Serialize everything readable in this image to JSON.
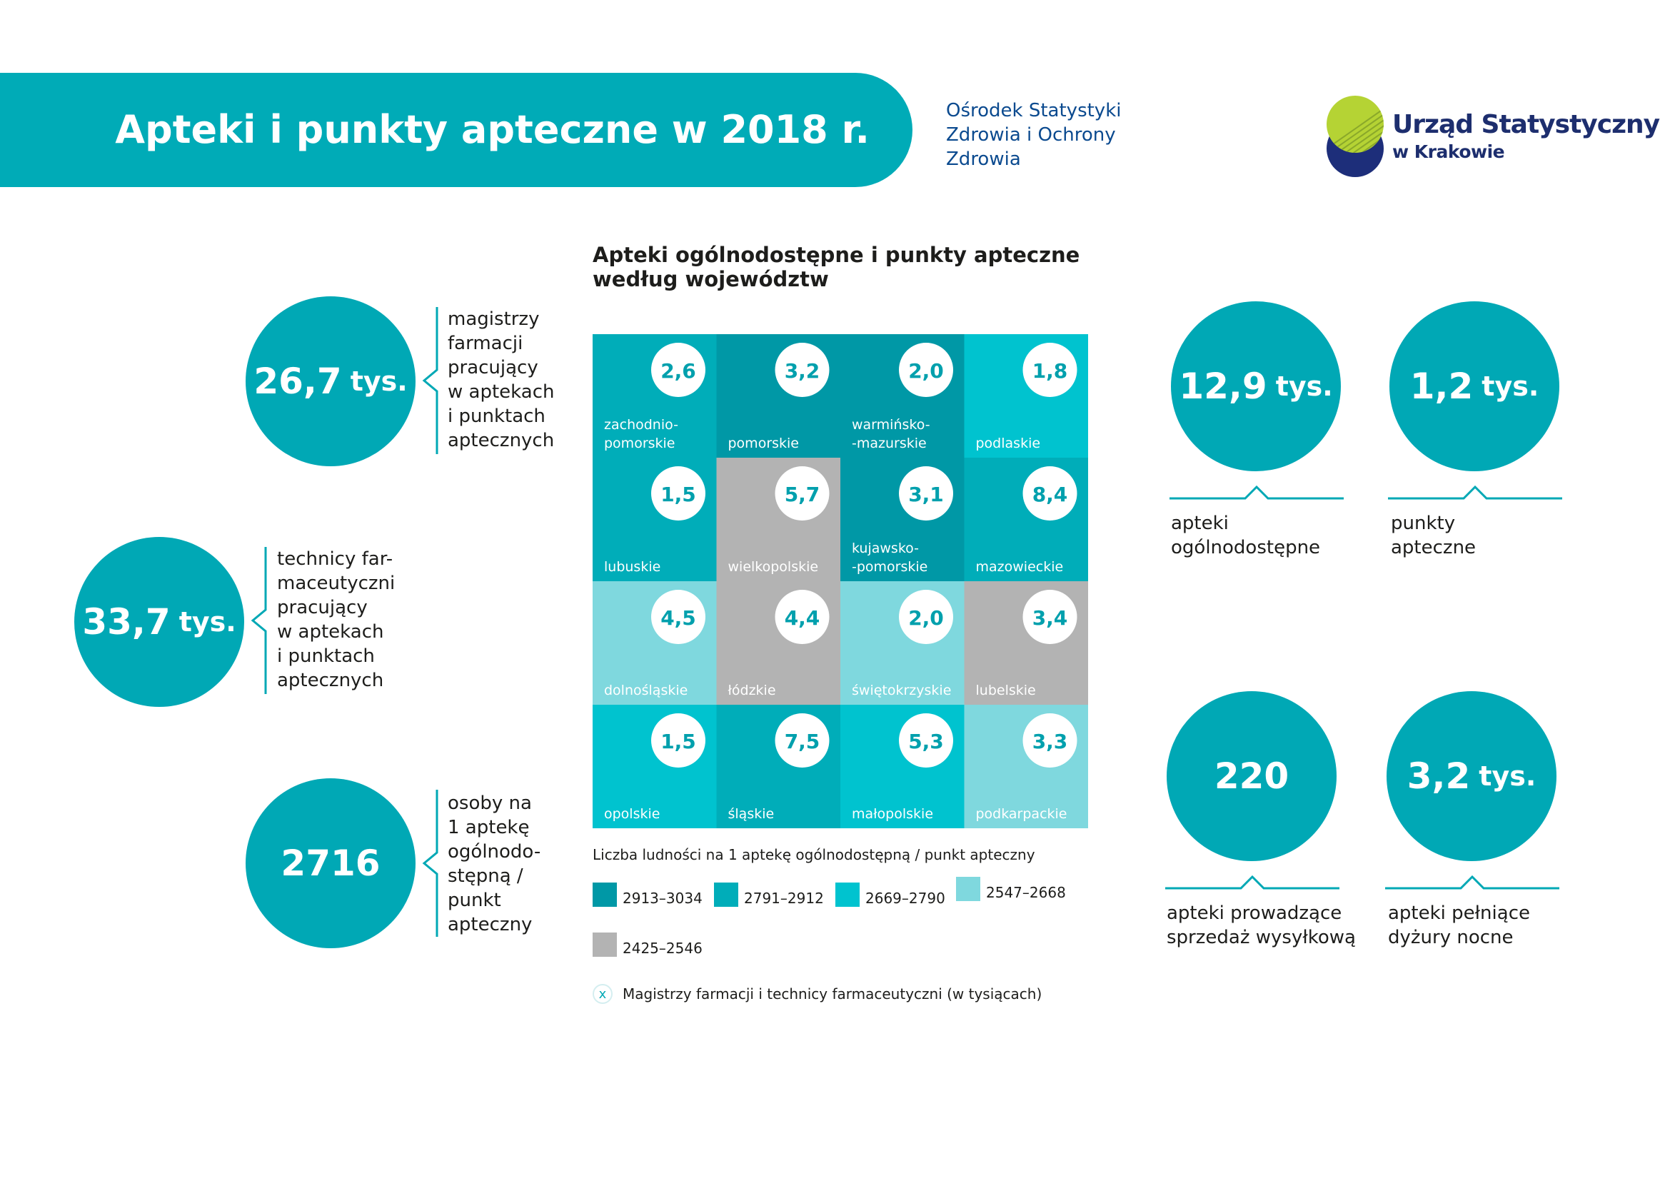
{
  "header": {
    "title": "Apteki i punkty apteczne w 2018 r.",
    "unit_lines": [
      "Ośrodek Statystyki",
      "Zdrowia i Ochrony",
      "Zdrowia"
    ],
    "logo_name": "Urząd Statystyczny",
    "logo_city": "w Krakowie",
    "accent": "#00abb7"
  },
  "left_stats": [
    {
      "value": "26,7",
      "unit": "tys.",
      "lines": [
        "magistrzy",
        "farmacji",
        "pracujący",
        "w aptekach",
        "i punktach",
        "aptecznych"
      ]
    },
    {
      "value": "33,7",
      "unit": "tys.",
      "lines": [
        "technicy far-",
        "maceutyczni",
        "pracujący",
        "w aptekach",
        "i punktach",
        "aptecznych"
      ]
    },
    {
      "value": "2716",
      "unit": "",
      "lines": [
        "osoby na",
        "1 aptekę",
        "ogólnodo-",
        "stępną /",
        "punkt",
        "apteczny"
      ]
    }
  ],
  "right_stats": [
    {
      "value": "12,9",
      "unit": "tys.",
      "lines": [
        "apteki",
        "ogólnodostępne"
      ]
    },
    {
      "value": "1,2",
      "unit": "tys.",
      "lines": [
        "punkty",
        "apteczne"
      ]
    },
    {
      "value": "220",
      "unit": "",
      "lines": [
        "apteki prowadzące",
        "sprzedaż wysyłkową"
      ]
    },
    {
      "value": "3,2",
      "unit": "tys.",
      "lines": [
        "apteki pełniące",
        "dyżury nocne"
      ]
    }
  ],
  "chart_data": {
    "type": "table",
    "title_lines": [
      "Apteki ogólnodostępne i punkty apteczne",
      "według województw"
    ],
    "classes": [
      {
        "label": "2913–3034",
        "color": "#0098a6"
      },
      {
        "label": "2791–2912",
        "color": "#00adb9"
      },
      {
        "label": "2669–2790",
        "color": "#00c3cf"
      },
      {
        "label": "2547–2668",
        "color": "#7fd8de"
      },
      {
        "label": "2425–2546",
        "color": "#b3b3b3"
      }
    ],
    "legend_title": "Liczba ludności na 1 aptekę ogólnodostępną / punkt apteczny",
    "legend_marker": "x",
    "legend_marker_text": "Magistrzy farmacji i technicy farmaceutyczni (w tysiącach)",
    "cells": [
      {
        "row": 0,
        "col": 0,
        "region_lines": [
          "zachodnio-",
          "pomorskie"
        ],
        "value": "2,6",
        "class": 1
      },
      {
        "row": 0,
        "col": 1,
        "region_lines": [
          "pomorskie"
        ],
        "value": "3,2",
        "class": 0
      },
      {
        "row": 0,
        "col": 2,
        "region_lines": [
          "warmińsko-",
          "-mazurskie"
        ],
        "value": "2,0",
        "class": 0
      },
      {
        "row": 0,
        "col": 3,
        "region_lines": [
          "podlaskie"
        ],
        "value": "1,8",
        "class": 2
      },
      {
        "row": 1,
        "col": 0,
        "region_lines": [
          "lubuskie"
        ],
        "value": "1,5",
        "class": 1
      },
      {
        "row": 1,
        "col": 1,
        "region_lines": [
          "wielkopolskie"
        ],
        "value": "5,7",
        "class": 4
      },
      {
        "row": 1,
        "col": 2,
        "region_lines": [
          "kujawsko-",
          "-pomorskie"
        ],
        "value": "3,1",
        "class": 0
      },
      {
        "row": 1,
        "col": 3,
        "region_lines": [
          "mazowieckie"
        ],
        "value": "8,4",
        "class": 1
      },
      {
        "row": 2,
        "col": 0,
        "region_lines": [
          "dolnośląskie"
        ],
        "value": "4,5",
        "class": 3
      },
      {
        "row": 2,
        "col": 1,
        "region_lines": [
          "łódzkie"
        ],
        "value": "4,4",
        "class": 4
      },
      {
        "row": 2,
        "col": 2,
        "region_lines": [
          "świętokrzyskie"
        ],
        "value": "2,0",
        "class": 3
      },
      {
        "row": 2,
        "col": 3,
        "region_lines": [
          "lubelskie"
        ],
        "value": "3,4",
        "class": 4
      },
      {
        "row": 3,
        "col": 0,
        "region_lines": [
          "opolskie"
        ],
        "value": "1,5",
        "class": 2
      },
      {
        "row": 3,
        "col": 1,
        "region_lines": [
          "śląskie"
        ],
        "value": "7,5",
        "class": 1
      },
      {
        "row": 3,
        "col": 2,
        "region_lines": [
          "małopolskie"
        ],
        "value": "5,3",
        "class": 2
      },
      {
        "row": 3,
        "col": 3,
        "region_lines": [
          "podkarpackie"
        ],
        "value": "3,3",
        "class": 3
      }
    ]
  }
}
